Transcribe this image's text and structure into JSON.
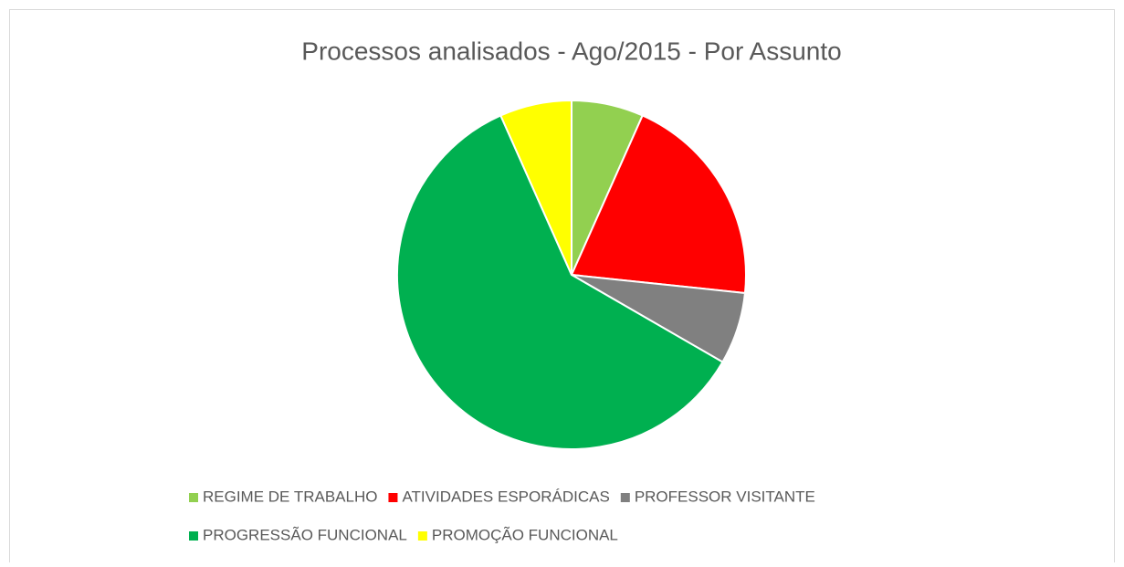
{
  "chart_data": {
    "type": "pie",
    "title": "Processos analisados - Ago/2015 - Por Assunto",
    "categories": [
      "REGIME DE TRABALHO",
      "ATIVIDADES ESPORÁDICAS",
      "PROFESSOR VISITANTE",
      "PROGRESSÃO FUNCIONAL",
      "PROMOÇÃO FUNCIONAL"
    ],
    "values": [
      1,
      3,
      1,
      9,
      1
    ],
    "colors": [
      "#92d050",
      "#ff0000",
      "#808080",
      "#00b050",
      "#ffff00"
    ],
    "legend": "bottom"
  }
}
